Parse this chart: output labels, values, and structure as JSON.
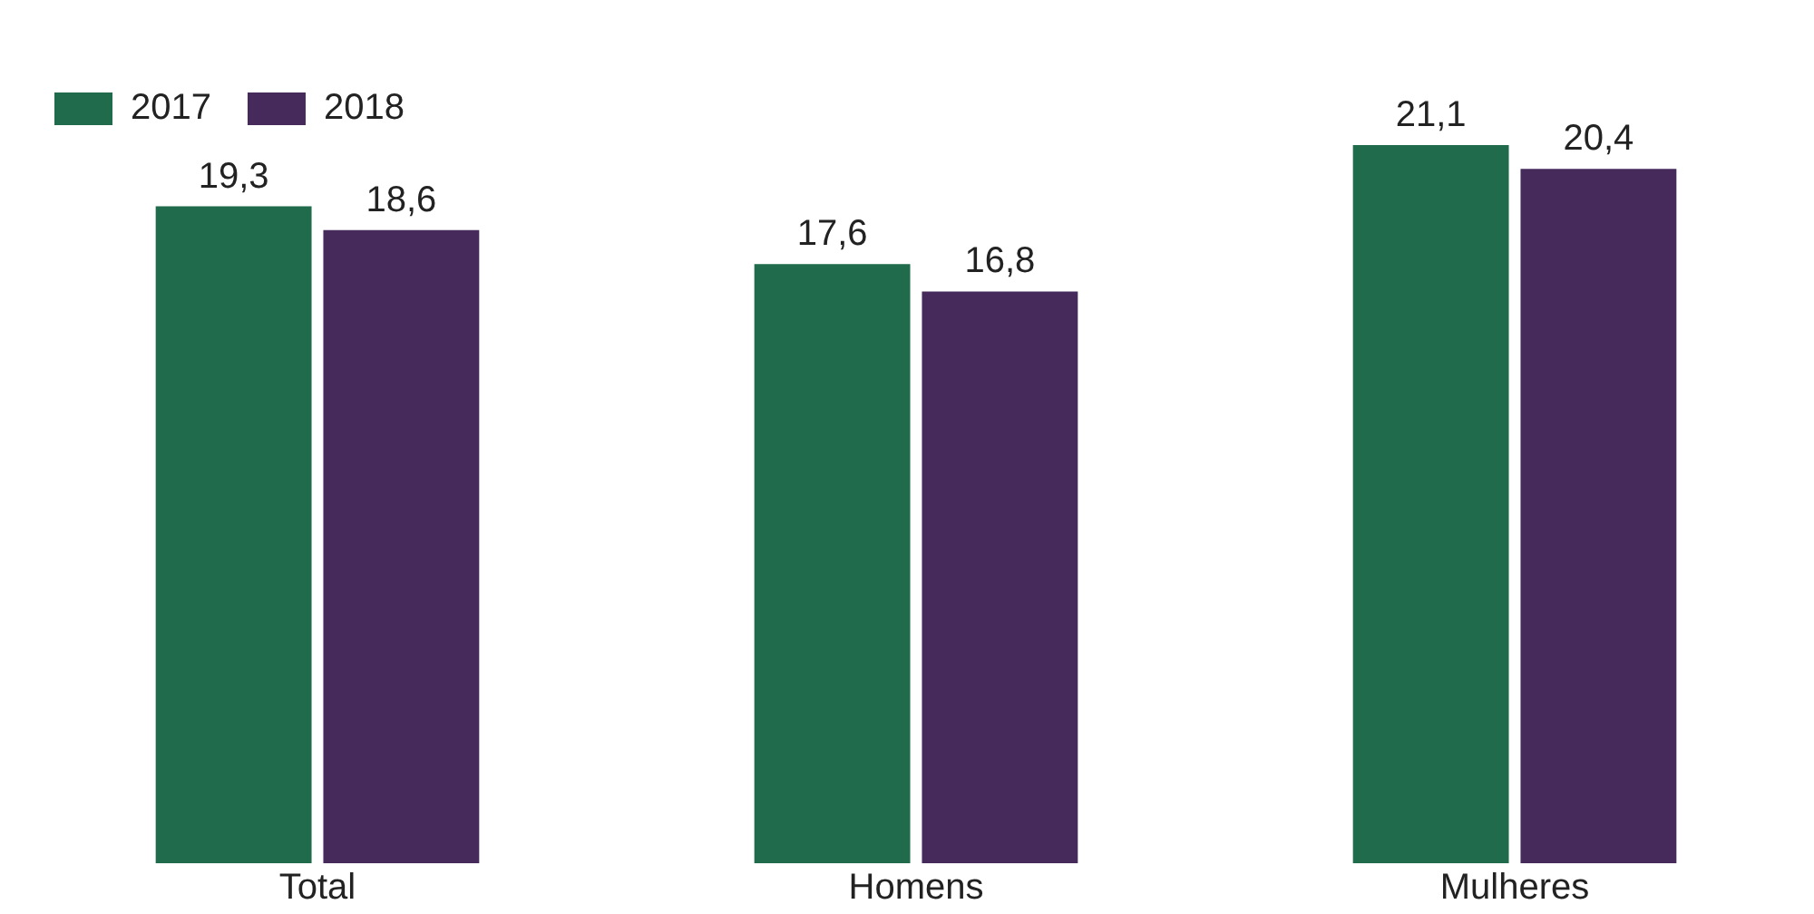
{
  "chart_data": {
    "type": "bar",
    "categories": [
      "Total",
      "Homens",
      "Mulheres"
    ],
    "series": [
      {
        "name": "2017",
        "color": "#1f6b4b",
        "values": [
          19.3,
          17.6,
          21.1
        ],
        "value_labels": [
          "19,3",
          "17,6",
          "21,1"
        ]
      },
      {
        "name": "2018",
        "color": "#472a5c",
        "values": [
          18.6,
          16.8,
          20.4
        ],
        "value_labels": [
          "18,6",
          "16,8",
          "20,4"
        ]
      }
    ],
    "legend": "top left",
    "grid": false
  }
}
